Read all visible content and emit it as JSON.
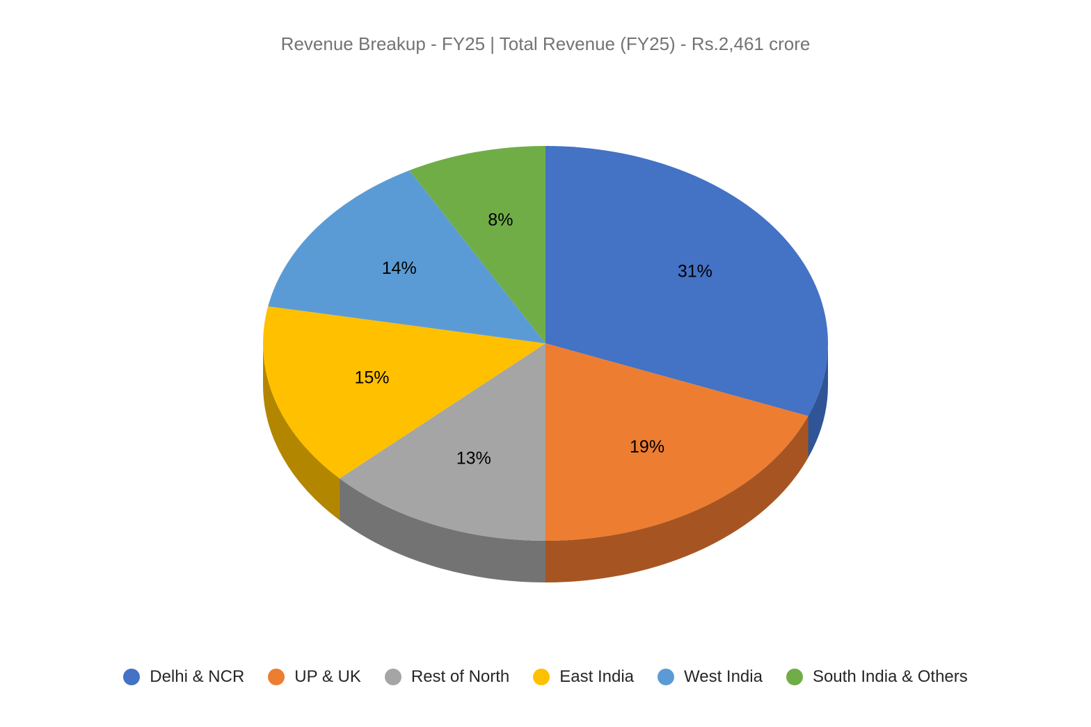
{
  "chart_data": {
    "type": "pie",
    "title": "Revenue Breakup - FY25 | Total Revenue (FY25) - Rs.2,461 crore",
    "categories": [
      "Delhi & NCR",
      "UP & UK",
      "Rest of North",
      "East India",
      "West India",
      "South India & Others"
    ],
    "values": [
      31,
      19,
      13,
      15,
      14,
      8
    ],
    "labels": [
      "31%",
      "19%",
      "13%",
      "15%",
      "14%",
      "8%"
    ],
    "colors": [
      "#4472C4",
      "#ED7D31",
      "#A5A5A5",
      "#FFC000",
      "#5B9BD5",
      "#70AD47"
    ],
    "side_colors": [
      "#2F5597",
      "#A65522",
      "#737373",
      "#B38600",
      "#3F6D96",
      "#4E7A32"
    ],
    "legend_position": "bottom",
    "style": "3d"
  }
}
